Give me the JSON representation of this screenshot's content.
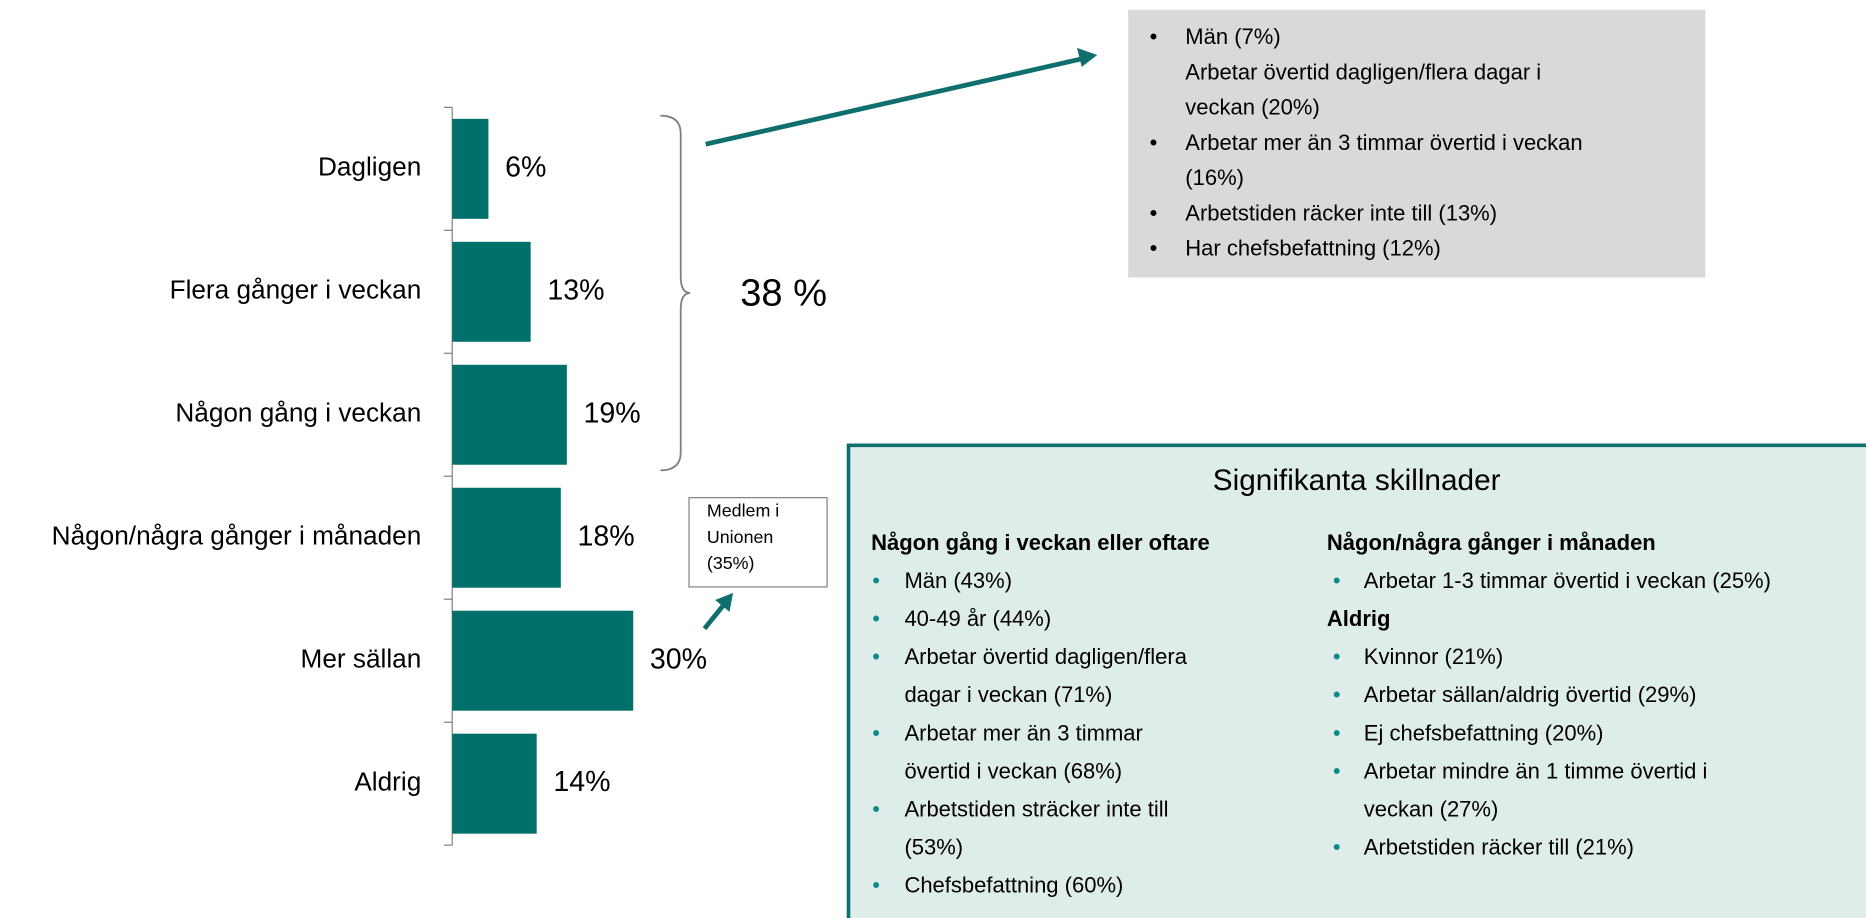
{
  "chart_data": {
    "type": "bar",
    "orientation": "horizontal",
    "categories": [
      "Dagligen",
      "Flera gånger i veckan",
      "Någon gång i veckan",
      "Någon/några gånger i månaden",
      "Mer sällan",
      "Aldrig"
    ],
    "values": [
      6,
      13,
      19,
      18,
      30,
      14
    ],
    "value_labels": [
      "6%",
      "13%",
      "19%",
      "18%",
      "30%",
      "14%"
    ],
    "color": "#00706b"
  },
  "bracket_label": "38 %",
  "top_box": {
    "items": [
      [
        "Män (7%)",
        "Arbetar övertid dagligen/flera dagar i",
        "veckan (20%)"
      ],
      [
        "Arbetar mer än 3 timmar övertid i veckan",
        "(16%)"
      ],
      [
        "Arbetstiden räcker inte till (13%)"
      ],
      [
        "Har chefsbefattning (12%)"
      ]
    ]
  },
  "unionen_note": [
    "Medlem i",
    "Unionen",
    "(35%)"
  ],
  "significant_box": {
    "title": "Signifikanta skillnader",
    "columns": [
      [
        {
          "heading": "Någon gång i veckan eller oftare",
          "items": [
            [
              "Män (43%)"
            ],
            [
              "40-49 år (44%)"
            ],
            [
              "Arbetar övertid dagligen/flera",
              "dagar i veckan (71%)"
            ],
            [
              "Arbetar mer än 3 timmar",
              "övertid i veckan (68%)"
            ],
            [
              "Arbetstiden sträcker inte till",
              "(53%)"
            ],
            [
              "Chefsbefattning (60%)"
            ]
          ]
        }
      ],
      [
        {
          "heading": "Någon/några gånger i månaden",
          "items": [
            [
              "Arbetar 1-3 timmar övertid i veckan (25%)"
            ]
          ]
        },
        {
          "heading": "Aldrig",
          "items": [
            [
              "Kvinnor (21%)"
            ],
            [
              "Arbetar sällan/aldrig övertid (29%)"
            ],
            [
              "Ej chefsbefattning (20%)"
            ],
            [
              "Arbetar mindre än 1 timme övertid i",
              "veckan (27%)"
            ],
            [
              "Arbetstiden räcker till (21%)"
            ]
          ]
        }
      ]
    ]
  }
}
